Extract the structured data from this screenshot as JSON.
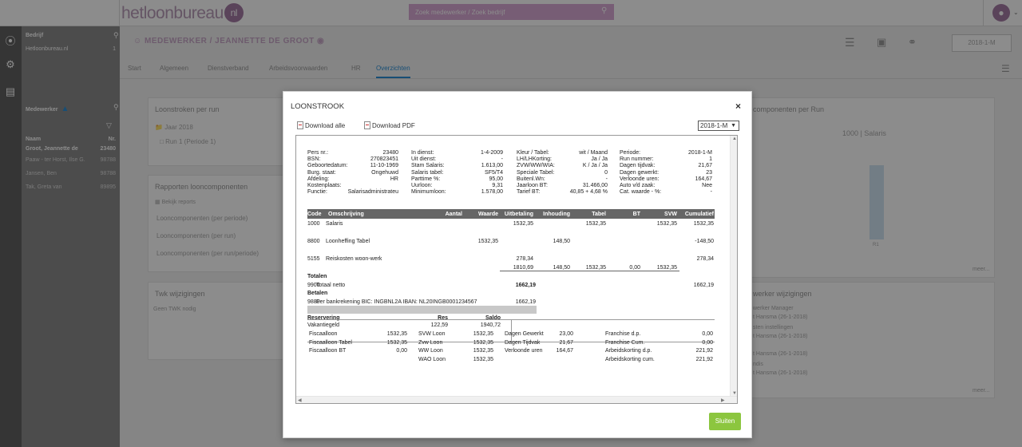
{
  "app": {
    "logo_text": "hetloonbureau",
    "logo_badge": "nl",
    "search_placeholder": "Zoek medewerker / Zoek bedrijf"
  },
  "sidebar": {
    "company_header": "Bedrijf",
    "company_name": "Hetloonbureau.nl",
    "company_count": "1",
    "employee_header": "Medewerker",
    "col_name": "Naam",
    "col_nr": "Nr.",
    "employees": [
      {
        "name": "Groot, Jeannette de",
        "nr": "23480"
      },
      {
        "name": "Paaw - ter Horst, Ilse G.",
        "nr": "98788"
      },
      {
        "name": "Jansen, Ben",
        "nr": "98788"
      },
      {
        "name": "Tak, Greta van",
        "nr": "89895"
      }
    ]
  },
  "header": {
    "breadcrumb": "MEDEWERKER / JEANNETTE DE GROOT",
    "period_button": "2018-1-M"
  },
  "tabs": [
    "Start",
    "Algemeen",
    "Dienstverband",
    "Arbeidsvoorwaarden",
    "HR",
    "Overzichten"
  ],
  "panels": {
    "loonstroken_title": "Loonstroken per run",
    "year_folder": "Jaar 2018",
    "run_item": "Run 1 (Periode 1)",
    "rapporten_title": "Rapporten looncomponenten",
    "bekijk_reports": "Bekijk reports",
    "report_items": [
      "Looncomponenten (per periode)",
      "Looncomponenten (per run)",
      "Looncomponenten (per run/periode)"
    ],
    "twk_title": "Twk wijzigingen",
    "twk_empty": "Geen TWK nodig",
    "right_chart_title": "componenten per Run",
    "chart_legend": "1000 | Salaris",
    "chart_tick": "R1",
    "more": "meer...",
    "wijzigingen_title": "werker wijzigingen",
    "wijz_items": [
      "werker Manager",
      "t Hansma (26-1-2018)",
      "sten instellingen",
      "t Hansma (26-1-2018)",
      "t Hansma (26-1-2018)",
      "ndis",
      "t Hansma (26-1-2018)"
    ]
  },
  "modal": {
    "title": "LOONSTROOK",
    "close": "×",
    "download_all": "Download alle",
    "download_pdf": "Download PDF",
    "period": "2018-1-M",
    "close_button": "Sluiten"
  },
  "slip": {
    "info_col1": [
      [
        "Pers nr.:",
        "23480"
      ],
      [
        "BSN:",
        "270823451"
      ],
      [
        "Geboortedatum:",
        "11-10-1969"
      ],
      [
        "Burg. staat:",
        "Ongehuwd"
      ],
      [
        "Afdeling:",
        "HR"
      ],
      [
        "Kostenplaats:",
        ""
      ],
      [
        "Functie:",
        "Salarisadministrateu"
      ]
    ],
    "info_col2": [
      [
        "In dienst:",
        "1-4-2009"
      ],
      [
        "Uit dienst:",
        "-"
      ],
      [
        "Stam Salaris:",
        "1.613,00"
      ],
      [
        "Salaris tabel:",
        "SF5/T4"
      ],
      [
        "Parttime %:",
        "95,00"
      ],
      [
        "Uurloon:",
        "9,31"
      ],
      [
        "Minimumloon:",
        "1.578,00"
      ]
    ],
    "info_col3": [
      [
        "Kleur / Tabel:",
        "wit / Maand"
      ],
      [
        "LH/LHKorting:",
        "Ja / Ja"
      ],
      [
        "ZVW/WW/WIA:",
        "K / Ja / Ja"
      ],
      [
        "Speciale Tabel:",
        "0"
      ],
      [
        "Buitenl.Wn:",
        "-"
      ],
      [
        "Jaarloon BT:",
        "31.466,00"
      ],
      [
        "Tarief BT:",
        "40,85 + 4,68 %"
      ]
    ],
    "info_col4": [
      [
        "Periode:",
        "2018-1-M"
      ],
      [
        "Run nummer:",
        "1"
      ],
      [
        "Dagen tijdvak:",
        "21,67"
      ],
      [
        "Dagen gewerkt:",
        "23"
      ],
      [
        "Verloonde uren:",
        "164,67"
      ],
      [
        "Auto v/d zaak:",
        "Nee"
      ],
      [
        "Cat. waarde - %:",
        "-"
      ]
    ],
    "columns": [
      "Code",
      "Omschrijving",
      "Aantal",
      "Waarde",
      "Uitbetaling",
      "Inhouding",
      "Tabel",
      "BT",
      "SVW",
      "Cumulatief"
    ],
    "rows": [
      {
        "code": "1000",
        "desc": "Salaris",
        "aantal": "",
        "waarde": "",
        "uit": "1532,35",
        "inh": "",
        "tabel": "1532,35",
        "bt": "",
        "svw": "1532,35",
        "cum": "1532,35"
      },
      {
        "code": "8800",
        "desc": "Loonheffing Tabel",
        "aantal": "",
        "waarde": "1532,35",
        "uit": "",
        "inh": "148,50",
        "tabel": "",
        "bt": "",
        "svw": "",
        "cum": "-148,50"
      },
      {
        "code": "5155",
        "desc": "Reiskosten woon-werk",
        "aantal": "",
        "waarde": "",
        "uit": "278,34",
        "inh": "",
        "tabel": "",
        "bt": "",
        "svw": "",
        "cum": "278,34"
      }
    ],
    "totals_row": {
      "uit": "1810,69",
      "inh": "148,50",
      "tabel": "1532,35",
      "bt": "0,00",
      "svw": "1532,35"
    },
    "totalen_label": "Totalen",
    "netto": {
      "code": "9900",
      "desc": "Totaal netto",
      "value": "1662,19",
      "cum": "1662,19"
    },
    "betalen_label": "Betalen",
    "bank": {
      "code": "9880",
      "desc": "Per bankrekening BIC: INGBNL2A IBAN: NL20INGB0001234567",
      "value": "1662,19"
    },
    "reservering": {
      "label": "Reservering",
      "res_h": "Res",
      "saldo_h": "Saldo",
      "item": "Vakantiegeld",
      "res": "122,59",
      "saldo": "1940,72"
    },
    "footer": [
      [
        "Fiscaalloon",
        "1532,35",
        "SVW Loon",
        "1532,35",
        "Dagen Gewerkt",
        "23,00",
        "Franchise d.p.",
        "0,00"
      ],
      [
        "Fiscaalloon Tabel",
        "1532,35",
        "Zvw Loon",
        "1532,35",
        "Dagen Tijdvak",
        "21,67",
        "Franchise Cum.",
        "0,00"
      ],
      [
        "Fiscaalloon BT",
        "0,00",
        "WW Loon",
        "1532,35",
        "Verloonde uren",
        "164,67",
        "Arbeidskorting d.p.",
        "221,92"
      ],
      [
        "",
        "",
        "WAO Loon",
        "1532,35",
        "",
        "",
        "Arbeidskorting cum.",
        "221,92"
      ]
    ]
  }
}
